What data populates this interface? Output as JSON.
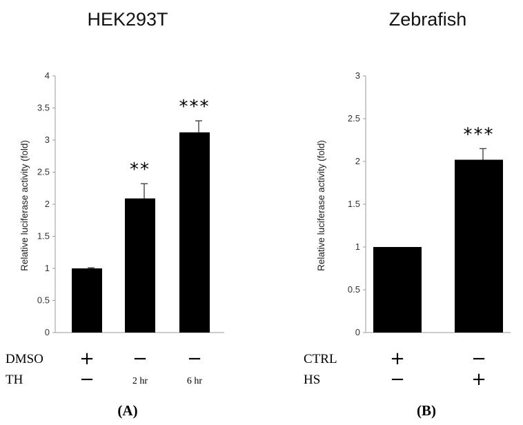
{
  "chart_data": [
    {
      "type": "bar",
      "title": "HEK293T",
      "ylabel": "Relative luciferase activity (fold)",
      "ylim": [
        0,
        4
      ],
      "yticks": [
        "0",
        "0.5",
        "1",
        "1.5",
        "2",
        "2.5",
        "3",
        "3.5",
        "4"
      ],
      "categories": [
        "DMSO +, TH −",
        "DMSO −, TH 2 hr",
        "DMSO −, TH 6 hr"
      ],
      "values": [
        1.0,
        2.09,
        3.12
      ],
      "errors": [
        0.01,
        0.23,
        0.18
      ],
      "significance": [
        "",
        "**",
        "***"
      ],
      "treatment_rows": [
        {
          "label": "DMSO",
          "cells": [
            "+",
            "−",
            "−"
          ]
        },
        {
          "label": "TH",
          "cells": [
            "−",
            "2 hr",
            "6 hr"
          ]
        }
      ],
      "panel_label": "(A)",
      "bar_color": "#000000"
    },
    {
      "type": "bar",
      "title": "Zebrafish",
      "ylabel": "Relative luciferase activity (fold)",
      "ylim": [
        0,
        3
      ],
      "yticks": [
        "0",
        "0.5",
        "1",
        "1.5",
        "2",
        "2.5",
        "3"
      ],
      "categories": [
        "CTRL +, HS −",
        "CTRL −, HS +"
      ],
      "values": [
        1.0,
        2.02
      ],
      "errors": [
        0.0,
        0.13
      ],
      "significance": [
        "",
        "***"
      ],
      "treatment_rows": [
        {
          "label": "CTRL",
          "cells": [
            "+",
            "−"
          ]
        },
        {
          "label": "HS",
          "cells": [
            "−",
            "+"
          ]
        }
      ],
      "panel_label": "(B)",
      "bar_color": "#000000"
    }
  ]
}
